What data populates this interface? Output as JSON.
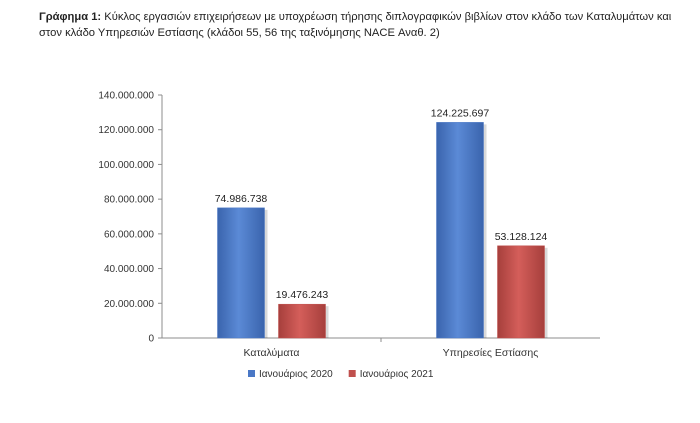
{
  "caption": {
    "prefix": "Γράφημα 1:",
    "text": "Κύκλος εργασιών επιχειρήσεων με υποχρέωση τήρησης διπλογραφικών βιβλίων στον κλάδο των Καταλυμάτων και στον κλάδο Υπηρεσιών Εστίασης (κλάδοι 55, 56 της ταξινόμησης NACE Αναθ. 2)"
  },
  "chart_data": {
    "type": "bar",
    "categories": [
      "Καταλύματα",
      "Υπηρεσίες Εστίασης"
    ],
    "series": [
      {
        "name": "Ιανουάριος 2020",
        "values": [
          74986738,
          124225697
        ],
        "labels": [
          "74.986.738",
          "124.225.697"
        ],
        "color": "#4a78c6"
      },
      {
        "name": "Ιανουάριος 2021",
        "values": [
          19476243,
          53128124
        ],
        "labels": [
          "19.476.243",
          "53.128.124"
        ],
        "color": "#c0504d"
      }
    ],
    "yticks": [
      "0",
      "20.000.000",
      "40.000.000",
      "60.000.000",
      "80.000.000",
      "100.000.000",
      "120.000.000",
      "140.000.000"
    ],
    "ylim": [
      0,
      140000000
    ],
    "grid": false,
    "legend": "bottom"
  }
}
